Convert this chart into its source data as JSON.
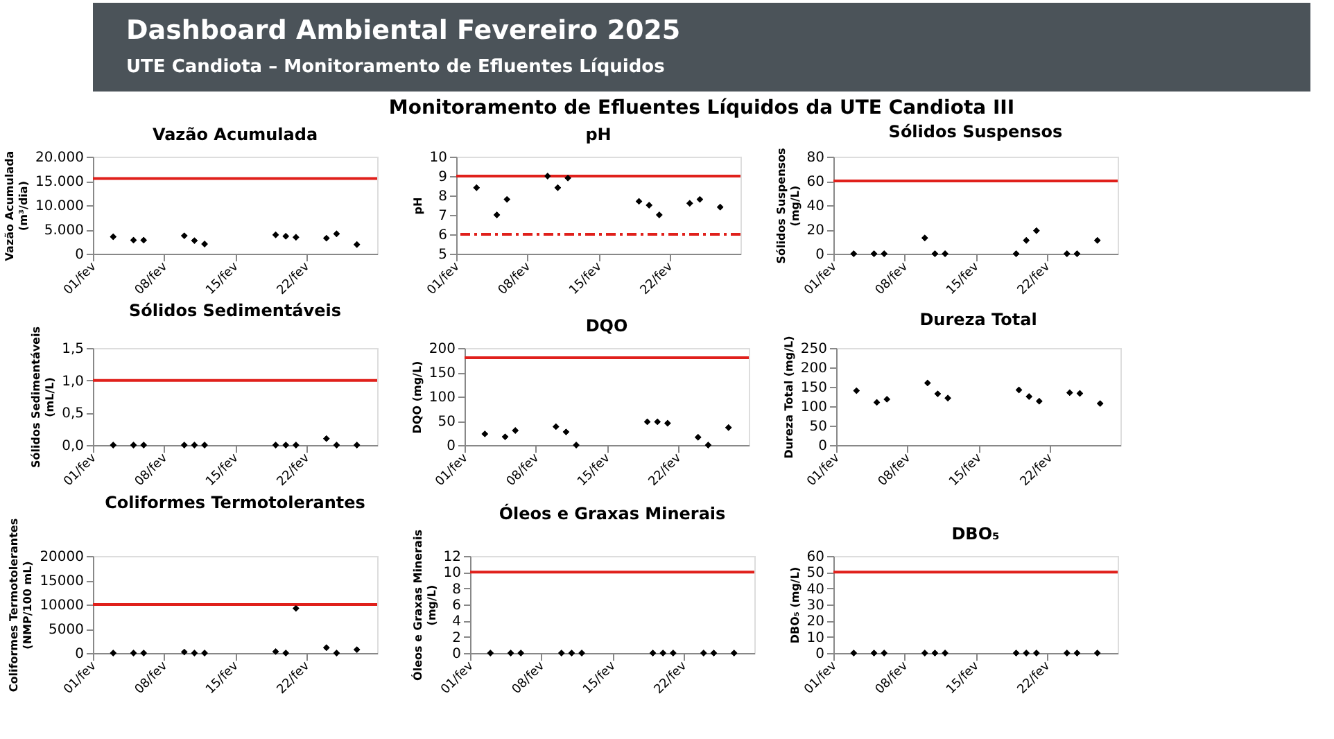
{
  "chart_data": [
    {
      "type": "other",
      "title": "Dashboard Ambiental Fevereiro 2025",
      "subtitle": "UTE Candiota – Monitoramento de Efluentes Líquidos",
      "annotations": [
        "Monitoramento de Efluentes Líquidos da UTE Candiota III"
      ]
    },
    {
      "type": "scatter",
      "title": "Vazão Acumulada",
      "ylabel": "Vazão Acumulada\n(m³/dia)",
      "marker": "diamond",
      "color": "#000000",
      "x": [
        "2025-02-03",
        "2025-02-05",
        "2025-02-06",
        "2025-02-10",
        "2025-02-11",
        "2025-02-12",
        "2025-02-19",
        "2025-02-20",
        "2025-02-21",
        "2025-02-24",
        "2025-02-25",
        "2025-02-27"
      ],
      "values": [
        3500,
        2800,
        2800,
        3700,
        2700,
        2000,
        3900,
        3600,
        3400,
        3200,
        4100,
        1900
      ],
      "xlim": [
        "2025-02-01",
        "2025-03-01"
      ],
      "xticks": [
        {
          "value": "2025-02-01",
          "label": "01/fev"
        },
        {
          "value": "2025-02-08",
          "label": "08/fev"
        },
        {
          "value": "2025-02-15",
          "label": "15/fev"
        },
        {
          "value": "2025-02-22",
          "label": "22/fev"
        }
      ],
      "ylim": [
        0,
        20000
      ],
      "yticks": [
        {
          "value": 0,
          "label": "0"
        },
        {
          "value": 5000,
          "label": "5.000"
        },
        {
          "value": 10000,
          "label": "10.000"
        },
        {
          "value": 15000,
          "label": "15.000"
        },
        {
          "value": 20000,
          "label": "20.000"
        }
      ],
      "ref_lines": [
        {
          "axis": "y",
          "value": 15500,
          "color": "#e0201b",
          "line_style": "solid"
        }
      ]
    },
    {
      "type": "scatter",
      "title": "pH",
      "ylabel": "pH",
      "marker": "diamond",
      "color": "#000000",
      "x": [
        "2025-02-03",
        "2025-02-05",
        "2025-02-06",
        "2025-02-10",
        "2025-02-11",
        "2025-02-12",
        "2025-02-19",
        "2025-02-20",
        "2025-02-21",
        "2025-02-24",
        "2025-02-25",
        "2025-02-27"
      ],
      "values": [
        8.4,
        7.0,
        7.8,
        9.0,
        8.4,
        8.9,
        7.7,
        7.5,
        7.0,
        7.6,
        7.8,
        7.4
      ],
      "xlim": [
        "2025-02-01",
        "2025-03-01"
      ],
      "xticks": [
        {
          "value": "2025-02-01",
          "label": "01/fev"
        },
        {
          "value": "2025-02-08",
          "label": "08/fev"
        },
        {
          "value": "2025-02-15",
          "label": "15/fev"
        },
        {
          "value": "2025-02-22",
          "label": "22/fev"
        }
      ],
      "ylim": [
        5,
        10
      ],
      "yticks": [
        5,
        6,
        7,
        8,
        9,
        10
      ],
      "ref_lines": [
        {
          "axis": "y",
          "value": 9,
          "color": "#e0201b",
          "line_style": "solid"
        },
        {
          "axis": "y",
          "value": 6,
          "color": "#e0201b",
          "line_style": "dashed"
        }
      ]
    },
    {
      "type": "scatter",
      "title": "Sólidos Suspensos",
      "ylabel": "Sólidos Suspensos\n(mg/L)",
      "marker": "diamond",
      "color": "#000000",
      "x": [
        "2025-02-03",
        "2025-02-05",
        "2025-02-06",
        "2025-02-10",
        "2025-02-11",
        "2025-02-12",
        "2025-02-19",
        "2025-02-20",
        "2025-02-21",
        "2025-02-24",
        "2025-02-25",
        "2025-02-27"
      ],
      "values": [
        0,
        0,
        0,
        13,
        0,
        0,
        0,
        11,
        19,
        0,
        0,
        11
      ],
      "xlim": [
        "2025-02-01",
        "2025-03-01"
      ],
      "xticks": [
        {
          "value": "2025-02-01",
          "label": "01/fev"
        },
        {
          "value": "2025-02-08",
          "label": "08/fev"
        },
        {
          "value": "2025-02-15",
          "label": "15/fev"
        },
        {
          "value": "2025-02-22",
          "label": "22/fev"
        }
      ],
      "ylim": [
        0,
        80
      ],
      "yticks": [
        0,
        20,
        40,
        60,
        80
      ],
      "ref_lines": [
        {
          "axis": "y",
          "value": 60,
          "color": "#e0201b",
          "line_style": "solid"
        }
      ]
    },
    {
      "type": "scatter",
      "title": "Sólidos Sedimentáveis",
      "ylabel": "Sólidos Sedimentáveis\n(mL/L)",
      "marker": "diamond",
      "color": "#000000",
      "x": [
        "2025-02-03",
        "2025-02-05",
        "2025-02-06",
        "2025-02-10",
        "2025-02-11",
        "2025-02-12",
        "2025-02-19",
        "2025-02-20",
        "2025-02-21",
        "2025-02-24",
        "2025-02-25",
        "2025-02-27"
      ],
      "values": [
        0,
        0,
        0,
        0,
        0,
        0,
        0,
        0,
        0,
        0.1,
        0,
        0
      ],
      "xlim": [
        "2025-02-01",
        "2025-03-01"
      ],
      "xticks": [
        {
          "value": "2025-02-01",
          "label": "01/fev"
        },
        {
          "value": "2025-02-08",
          "label": "08/fev"
        },
        {
          "value": "2025-02-15",
          "label": "15/fev"
        },
        {
          "value": "2025-02-22",
          "label": "22/fev"
        }
      ],
      "ylim": [
        0,
        1.5
      ],
      "yticks": [
        {
          "value": 0,
          "label": "0,0"
        },
        {
          "value": 0.5,
          "label": "0,5"
        },
        {
          "value": 1.0,
          "label": "1,0"
        },
        {
          "value": 1.5,
          "label": "1,5"
        }
      ],
      "ref_lines": [
        {
          "axis": "y",
          "value": 1.0,
          "color": "#e0201b",
          "line_style": "solid"
        }
      ]
    },
    {
      "type": "scatter",
      "title": "DQO",
      "ylabel": "DQO (mg/L)",
      "marker": "diamond",
      "color": "#000000",
      "x": [
        "2025-02-03",
        "2025-02-05",
        "2025-02-06",
        "2025-02-10",
        "2025-02-11",
        "2025-02-12",
        "2025-02-19",
        "2025-02-20",
        "2025-02-21",
        "2025-02-24",
        "2025-02-25",
        "2025-02-27"
      ],
      "values": [
        23,
        17,
        30,
        38,
        27,
        0,
        48,
        48,
        45,
        16,
        0,
        36
      ],
      "xlim": [
        "2025-02-01",
        "2025-03-01"
      ],
      "xticks": [
        {
          "value": "2025-02-01",
          "label": "01/fev"
        },
        {
          "value": "2025-02-08",
          "label": "08/fev"
        },
        {
          "value": "2025-02-15",
          "label": "15/fev"
        },
        {
          "value": "2025-02-22",
          "label": "22/fev"
        }
      ],
      "ylim": [
        0,
        200
      ],
      "yticks": [
        0,
        50,
        100,
        150,
        200
      ],
      "ref_lines": [
        {
          "axis": "y",
          "value": 180,
          "color": "#e0201b",
          "line_style": "solid"
        }
      ]
    },
    {
      "type": "scatter",
      "title": "Dureza Total",
      "ylabel": "Dureza Total (mg/L)",
      "marker": "diamond",
      "color": "#000000",
      "x": [
        "2025-02-03",
        "2025-02-05",
        "2025-02-06",
        "2025-02-10",
        "2025-02-11",
        "2025-02-12",
        "2025-02-19",
        "2025-02-20",
        "2025-02-21",
        "2025-02-24",
        "2025-02-25",
        "2025-02-27"
      ],
      "values": [
        140,
        110,
        118,
        160,
        132,
        121,
        142,
        125,
        113,
        135,
        133,
        107
      ],
      "xlim": [
        "2025-02-01",
        "2025-03-01"
      ],
      "xticks": [
        {
          "value": "2025-02-01",
          "label": "01/fev"
        },
        {
          "value": "2025-02-08",
          "label": "08/fev"
        },
        {
          "value": "2025-02-15",
          "label": "15/fev"
        },
        {
          "value": "2025-02-22",
          "label": "22/fev"
        }
      ],
      "ylim": [
        0,
        250
      ],
      "yticks": [
        0,
        50,
        100,
        150,
        200,
        250
      ]
    },
    {
      "type": "scatter",
      "title": "Coliformes Termotolerantes",
      "ylabel": "Coliformes Termotolerantes\n(NMP/100 mL)",
      "marker": "diamond",
      "color": "#000000",
      "x": [
        "2025-02-03",
        "2025-02-05",
        "2025-02-06",
        "2025-02-10",
        "2025-02-11",
        "2025-02-12",
        "2025-02-19",
        "2025-02-20",
        "2025-02-21",
        "2025-02-24",
        "2025-02-25",
        "2025-02-27"
      ],
      "values": [
        0,
        0,
        0,
        200,
        0,
        0,
        300,
        0,
        9200,
        1100,
        0,
        700
      ],
      "xlim": [
        "2025-02-01",
        "2025-03-01"
      ],
      "xticks": [
        {
          "value": "2025-02-01",
          "label": "01/fev"
        },
        {
          "value": "2025-02-08",
          "label": "08/fev"
        },
        {
          "value": "2025-02-15",
          "label": "15/fev"
        },
        {
          "value": "2025-02-22",
          "label": "22/fev"
        }
      ],
      "ylim": [
        0,
        20000
      ],
      "yticks": [
        0,
        5000,
        10000,
        15000,
        20000
      ],
      "ref_lines": [
        {
          "axis": "y",
          "value": 10000,
          "color": "#e0201b",
          "line_style": "solid"
        }
      ]
    },
    {
      "type": "scatter",
      "title": "Óleos e Graxas Minerais",
      "ylabel": "Óleos e Graxas Minerais\n(mg/L)",
      "marker": "diamond",
      "color": "#000000",
      "x": [
        "2025-02-03",
        "2025-02-05",
        "2025-02-06",
        "2025-02-10",
        "2025-02-11",
        "2025-02-12",
        "2025-02-19",
        "2025-02-20",
        "2025-02-21",
        "2025-02-24",
        "2025-02-25",
        "2025-02-27"
      ],
      "values": [
        0,
        0,
        0,
        0,
        0,
        0,
        0,
        0,
        0,
        0,
        0,
        0
      ],
      "xlim": [
        "2025-02-01",
        "2025-03-01"
      ],
      "xticks": [
        {
          "value": "2025-02-01",
          "label": "01/fev"
        },
        {
          "value": "2025-02-08",
          "label": "08/fev"
        },
        {
          "value": "2025-02-15",
          "label": "15/fev"
        },
        {
          "value": "2025-02-22",
          "label": "22/fev"
        }
      ],
      "ylim": [
        0,
        12
      ],
      "yticks": [
        0,
        2,
        4,
        6,
        8,
        10,
        12
      ],
      "ref_lines": [
        {
          "axis": "y",
          "value": 10,
          "color": "#e0201b",
          "line_style": "solid"
        }
      ]
    },
    {
      "type": "scatter",
      "title": "DBO₅",
      "ylabel": "DBO₅ (mg/L)",
      "marker": "diamond",
      "color": "#000000",
      "x": [
        "2025-02-03",
        "2025-02-05",
        "2025-02-06",
        "2025-02-10",
        "2025-02-11",
        "2025-02-12",
        "2025-02-19",
        "2025-02-20",
        "2025-02-21",
        "2025-02-24",
        "2025-02-25",
        "2025-02-27"
      ],
      "values": [
        0,
        0,
        0,
        0,
        0,
        0,
        0,
        0,
        0,
        0,
        0,
        0
      ],
      "xlim": [
        "2025-02-01",
        "2025-03-01"
      ],
      "xticks": [
        {
          "value": "2025-02-01",
          "label": "01/fev"
        },
        {
          "value": "2025-02-08",
          "label": "08/fev"
        },
        {
          "value": "2025-02-15",
          "label": "15/fev"
        },
        {
          "value": "2025-02-22",
          "label": "22/fev"
        }
      ],
      "ylim": [
        0,
        60
      ],
      "yticks": [
        0,
        10,
        20,
        30,
        40,
        50,
        60
      ],
      "ref_lines": [
        {
          "axis": "y",
          "value": 50,
          "color": "#e0201b",
          "line_style": "solid"
        }
      ]
    }
  ]
}
